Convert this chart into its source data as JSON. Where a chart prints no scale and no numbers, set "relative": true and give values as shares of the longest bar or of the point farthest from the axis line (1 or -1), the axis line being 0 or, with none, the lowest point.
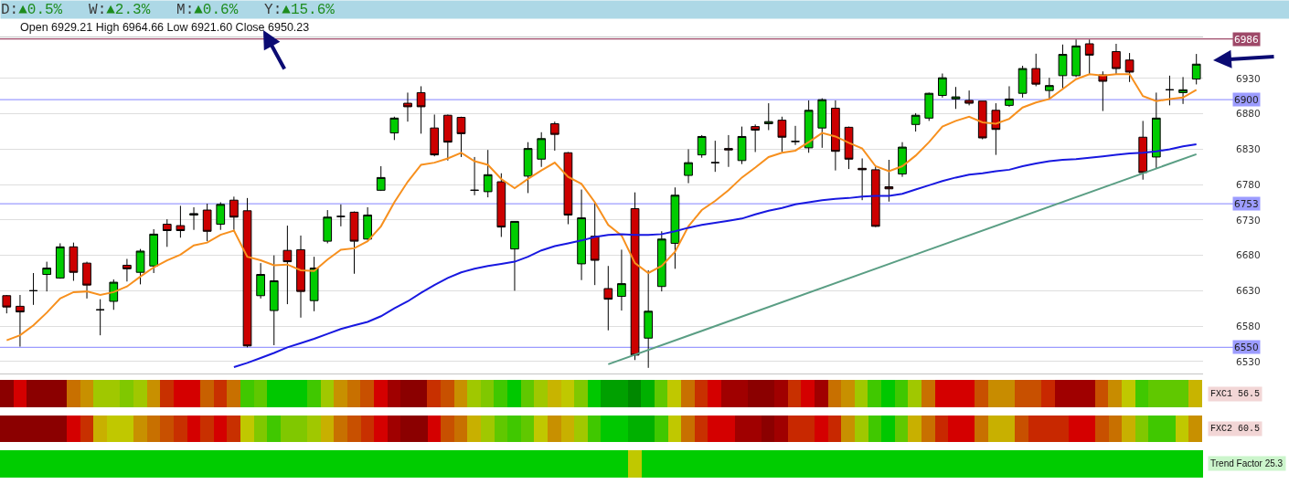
{
  "chart_data": [
    {
      "type": "candlestick",
      "title": "D:▲0.5%   W:▲2.3%   M:▲0.6%   Y:▲15.6%",
      "annotations": [
        "Open 6929.21 High 6964.66 Low 6921.60 Close 6950.23"
      ],
      "categories": [
        null,
        null,
        null,
        null,
        null,
        null,
        null,
        null,
        null,
        null,
        null,
        null,
        null,
        null,
        null,
        null,
        null,
        null,
        null,
        null,
        null,
        null,
        null,
        null,
        null,
        null,
        null,
        null,
        null,
        null,
        null,
        null,
        null,
        null,
        null,
        null,
        null,
        null,
        null,
        null,
        null,
        null,
        null,
        null,
        null,
        null,
        null,
        null,
        null,
        null,
        null,
        null,
        null,
        null,
        null,
        null,
        null,
        null,
        null,
        null,
        null,
        null,
        null,
        null,
        null,
        null,
        null,
        null,
        null,
        null,
        null,
        null,
        null,
        null,
        null,
        null,
        null,
        null,
        null,
        null,
        null,
        null,
        null,
        null,
        null,
        null,
        null,
        null,
        null,
        null
      ],
      "ohlc": [
        [
          6623,
          6624,
          6598,
          6607
        ],
        [
          6608,
          6624,
          6551,
          6600
        ],
        [
          6630,
          6655,
          6610,
          6630
        ],
        [
          6653,
          6671,
          6629,
          6662
        ],
        [
          6648,
          6697,
          6647,
          6692
        ],
        [
          6692,
          6698,
          6644,
          6656
        ],
        [
          6669,
          6671,
          6619,
          6638
        ],
        [
          6603,
          6618,
          6567,
          6603
        ],
        [
          6615,
          6646,
          6603,
          6642
        ],
        [
          6666,
          6675,
          6643,
          6661
        ],
        [
          6656,
          6689,
          6639,
          6686
        ],
        [
          6665,
          6717,
          6655,
          6710
        ],
        [
          6724,
          6731,
          6692,
          6715
        ],
        [
          6722,
          6750,
          6705,
          6715
        ],
        [
          6737,
          6748,
          6716,
          6739
        ],
        [
          6744,
          6753,
          6700,
          6714
        ],
        [
          6724,
          6755,
          6716,
          6752
        ],
        [
          6758,
          6763,
          6716,
          6734
        ],
        [
          6743,
          6761,
          6550,
          6552
        ],
        [
          6623,
          6669,
          6619,
          6653
        ],
        [
          6602,
          6680,
          6553,
          6644
        ],
        [
          6687,
          6722,
          6611,
          6671
        ],
        [
          6688,
          6708,
          6592,
          6629
        ],
        [
          6616,
          6678,
          6601,
          6662
        ],
        [
          6700,
          6744,
          6697,
          6734
        ],
        [
          6735,
          6752,
          6721,
          6735
        ],
        [
          6741,
          6742,
          6654,
          6700
        ],
        [
          6703,
          6748,
          6702,
          6737
        ],
        [
          6772,
          6806,
          6771,
          6790
        ],
        [
          6853,
          6876,
          6843,
          6874
        ],
        [
          6895,
          6910,
          6869,
          6890
        ],
        [
          6910,
          6919,
          6852,
          6890
        ],
        [
          6860,
          6879,
          6820,
          6822
        ],
        [
          6878,
          6879,
          6814,
          6840
        ],
        [
          6875,
          6876,
          6819,
          6852
        ],
        [
          6772,
          6819,
          6765,
          6772
        ],
        [
          6770,
          6829,
          6762,
          6794
        ],
        [
          6784,
          6796,
          6706,
          6720
        ],
        [
          6689,
          6728,
          6630,
          6728
        ],
        [
          6792,
          6840,
          6768,
          6831
        ],
        [
          6816,
          6854,
          6805,
          6845
        ],
        [
          6866,
          6869,
          6828,
          6851
        ],
        [
          6825,
          6826,
          6724,
          6737
        ],
        [
          6668,
          6773,
          6645,
          6733
        ],
        [
          6707,
          6754,
          6638,
          6673
        ],
        [
          6633,
          6665,
          6574,
          6618
        ],
        [
          6622,
          6688,
          6602,
          6640
        ],
        [
          6746,
          6769,
          6532,
          6539
        ],
        [
          6563,
          6659,
          6521,
          6601
        ],
        [
          6636,
          6714,
          6629,
          6703
        ],
        [
          6697,
          6776,
          6661,
          6765
        ],
        [
          6793,
          6830,
          6782,
          6811
        ],
        [
          6822,
          6850,
          6818,
          6848
        ],
        [
          6811,
          6842,
          6798,
          6811
        ],
        [
          6831,
          6850,
          6805,
          6829
        ],
        [
          6814,
          6862,
          6809,
          6848
        ],
        [
          6862,
          6865,
          6826,
          6857
        ],
        [
          6866,
          6895,
          6857,
          6869
        ],
        [
          6871,
          6876,
          6826,
          6847
        ],
        [
          6841,
          6863,
          6836,
          6841
        ],
        [
          6832,
          6899,
          6825,
          6885
        ],
        [
          6860,
          6902,
          6832,
          6900
        ],
        [
          6888,
          6899,
          6800,
          6827
        ],
        [
          6861,
          6862,
          6802,
          6816
        ],
        [
          6803,
          6817,
          6758,
          6801
        ],
        [
          6801,
          6806,
          6720,
          6721
        ],
        [
          6777,
          6815,
          6756,
          6774
        ],
        [
          6795,
          6840,
          6791,
          6833
        ],
        [
          6865,
          6881,
          6855,
          6878
        ],
        [
          6874,
          6910,
          6870,
          6909
        ],
        [
          6906,
          6937,
          6903,
          6931
        ],
        [
          6901,
          6918,
          6887,
          6904
        ],
        [
          6899,
          6913,
          6892,
          6895
        ],
        [
          6898,
          6898,
          6844,
          6846
        ],
        [
          6885,
          6895,
          6822,
          6858
        ],
        [
          6892,
          6919,
          6890,
          6901
        ],
        [
          6909,
          6948,
          6903,
          6944
        ],
        [
          6944,
          6965,
          6919,
          6922
        ],
        [
          6913,
          6931,
          6901,
          6920
        ],
        [
          6934,
          6978,
          6916,
          6964
        ],
        [
          6934,
          6985,
          6932,
          6976
        ],
        [
          6979,
          6985,
          6936,
          6963
        ],
        [
          6935,
          6940,
          6884,
          6926
        ],
        [
          6968,
          6979,
          6936,
          6944
        ],
        [
          6956,
          6966,
          6925,
          6939
        ],
        [
          6847,
          6870,
          6787,
          6797
        ],
        [
          6819,
          6910,
          6803,
          6874
        ],
        [
          6914,
          6934,
          6892,
          6914
        ],
        [
          6910,
          6932,
          6894,
          6914
        ],
        [
          6929.21,
          6964.66,
          6921.6,
          6950.23
        ]
      ],
      "series": [
        {
          "type": "line",
          "color": "#f7901e",
          "values": [
            6560,
            6567,
            6581,
            6599,
            6619,
            6628,
            6629,
            6624,
            6628,
            6636,
            6650,
            6663,
            6673,
            6681,
            6694,
            6698,
            6709,
            6715,
            6678,
            6673,
            6666,
            6667,
            6659,
            6658,
            6674,
            6688,
            6690,
            6700,
            6721,
            6755,
            6784,
            6808,
            6811,
            6817,
            6825,
            6813,
            6808,
            6788,
            6775,
            6788,
            6800,
            6811,
            6791,
            6781,
            6755,
            6723,
            6708,
            6669,
            6655,
            6665,
            6685,
            6721,
            6744,
            6757,
            6772,
            6790,
            6804,
            6819,
            6825,
            6828,
            6840,
            6853,
            6848,
            6839,
            6831,
            6806,
            6799,
            6806,
            6821,
            6840,
            6862,
            6870,
            6876,
            6868,
            6866,
            6873,
            6889,
            6896,
            6901,
            6915,
            6929,
            6936,
            6934,
            6936,
            6936,
            6905,
            6898,
            6901,
            6903,
            6914
          ]
        },
        {
          "type": "line",
          "color": "#1818e0",
          "values": [
            null,
            null,
            null,
            null,
            null,
            null,
            null,
            null,
            null,
            null,
            null,
            null,
            null,
            null,
            null,
            null,
            null,
            6522,
            6528,
            6535,
            6542,
            6550,
            6556,
            6562,
            6569,
            6576,
            6581,
            6586,
            6594,
            6605,
            6615,
            6627,
            6638,
            6648,
            6656,
            6661,
            6665,
            6668,
            6671,
            6678,
            6687,
            6693,
            6697,
            6701,
            6706,
            6709,
            6710,
            6709,
            6709,
            6710,
            6714,
            6719,
            6723,
            6726,
            6729,
            6732,
            6738,
            6743,
            6747,
            6752,
            6755,
            6758,
            6760,
            6761,
            6763,
            6764,
            6764,
            6767,
            6773,
            6779,
            6785,
            6790,
            6794,
            6796,
            6799,
            6801,
            6806,
            6810,
            6813,
            6815,
            6816,
            6818,
            6820,
            6822,
            6824,
            6825,
            6827,
            6830,
            6834,
            6837
          ]
        },
        {
          "type": "line",
          "color": "#5a9e84",
          "values": [
            null,
            null,
            null,
            null,
            null,
            null,
            null,
            null,
            null,
            null,
            null,
            null,
            null,
            null,
            null,
            null,
            null,
            null,
            null,
            null,
            null,
            null,
            null,
            null,
            null,
            null,
            null,
            null,
            null,
            null,
            null,
            null,
            null,
            null,
            null,
            null,
            null,
            null,
            null,
            null,
            null,
            null,
            null,
            null,
            null,
            6526,
            null,
            null,
            null,
            null,
            null,
            null,
            null,
            null,
            null,
            null,
            null,
            null,
            null,
            null,
            null,
            null,
            null,
            null,
            null,
            null,
            null,
            null,
            null,
            null,
            null,
            null,
            null,
            null,
            null,
            null,
            null,
            null,
            null,
            null,
            null,
            null,
            null,
            null,
            null,
            null,
            null,
            null,
            null,
            6823
          ]
        }
      ],
      "ylim": [
        6513,
        6988
      ],
      "yticks": [
        6530,
        6580,
        6630,
        6680,
        6730,
        6780,
        6830,
        6880,
        6930
      ],
      "ref_lines": [
        {
          "axis": "y",
          "value": 6986,
          "label": "6986",
          "color": "#9e4868"
        },
        {
          "axis": "y",
          "value": 6900,
          "label": "6900",
          "color": "#9c9cff"
        },
        {
          "axis": "y",
          "value": 6753,
          "label": "6753",
          "color": "#9c9cff"
        },
        {
          "axis": "y",
          "value": 6550,
          "label": "6550",
          "color": "#9c9cff"
        }
      ],
      "grid": "y",
      "tick_labels": "y"
    },
    {
      "type": "bar",
      "orientation": "horizontal",
      "stacked": true,
      "relative": true,
      "categories": [
        "FXC1 56.5",
        "FXC2 60.5",
        "Trend Factor 25.3"
      ],
      "series": [
        {
          "colors": [
            "#8b0000",
            "#8b0000",
            "#00cc00"
          ],
          "values": [
            0.0111,
            0.0556,
            0.5222
          ]
        },
        {
          "colors": [
            "#d40000",
            "#d40000",
            "#c0c800"
          ],
          "values": [
            0.0111,
            0.0111,
            0.0111
          ]
        },
        {
          "colors": [
            "#8b0000",
            "#c83000",
            "#00cc00"
          ],
          "values": [
            0.0333,
            0.0111,
            0.4667
          ]
        },
        {
          "colors": [
            "#c87000",
            "#c8b000",
            null
          ],
          "values": [
            0.0111,
            0.0111,
            null
          ]
        },
        {
          "colors": [
            "#c89000",
            "#c0c800",
            null
          ],
          "values": [
            0.0111,
            0.0222,
            null
          ]
        },
        {
          "colors": [
            "#a0c800",
            "#c89000",
            null
          ],
          "values": [
            0.0222,
            0.0111,
            null
          ]
        },
        {
          "colors": [
            "#80c800",
            "#c87000",
            null
          ],
          "values": [
            0.0111,
            0.0111,
            null
          ]
        },
        {
          "colors": [
            "#a0c800",
            "#c85000",
            null
          ],
          "values": [
            0.0111,
            0.0111,
            null
          ]
        },
        {
          "colors": [
            "#c89000",
            "#c83000",
            null
          ],
          "values": [
            0.0111,
            0.0111,
            null
          ]
        },
        {
          "colors": [
            "#c83000",
            "#d40000",
            null
          ],
          "values": [
            0.0111,
            0.0111,
            null
          ]
        },
        {
          "colors": [
            "#d40000",
            "#c83000",
            null
          ],
          "values": [
            0.0222,
            0.0111,
            null
          ]
        },
        {
          "colors": [
            "#c86000",
            "#d40000",
            null
          ],
          "values": [
            0.0111,
            0.0111,
            null
          ]
        },
        {
          "colors": [
            "#c83000",
            "#c83000",
            null
          ],
          "values": [
            0.0111,
            0.0111,
            null
          ]
        },
        {
          "colors": [
            "#c87000",
            "#c0c800",
            null
          ],
          "values": [
            0.0111,
            0.0111,
            null
          ]
        },
        {
          "colors": [
            "#40c800",
            "#80c800",
            null
          ],
          "values": [
            0.0111,
            0.0111,
            null
          ]
        },
        {
          "colors": [
            "#60c800",
            "#40c800",
            null
          ],
          "values": [
            0.0111,
            0.0111,
            null
          ]
        },
        {
          "colors": [
            "#00c800",
            "#80c800",
            null
          ],
          "values": [
            0.0333,
            0.0222,
            null
          ]
        },
        {
          "colors": [
            "#40c800",
            "#a0c800",
            null
          ],
          "values": [
            0.0111,
            0.0111,
            null
          ]
        },
        {
          "colors": [
            "#a0c800",
            "#c8b000",
            null
          ],
          "values": [
            0.0111,
            0.0111,
            null
          ]
        },
        {
          "colors": [
            "#c89000",
            "#c87000",
            null
          ],
          "values": [
            0.0111,
            0.0111,
            null
          ]
        },
        {
          "colors": [
            "#c87000",
            "#c85000",
            null
          ],
          "values": [
            0.0111,
            0.0111,
            null
          ]
        },
        {
          "colors": [
            "#c85000",
            "#c83000",
            null
          ],
          "values": [
            0.0111,
            0.0111,
            null
          ]
        },
        {
          "colors": [
            "#d40000",
            "#d40000",
            null
          ],
          "values": [
            0.0111,
            0.0111,
            null
          ]
        },
        {
          "colors": [
            "#a00000",
            "#a00000",
            null
          ],
          "values": [
            0.0111,
            0.0111,
            null
          ]
        },
        {
          "colors": [
            "#8b0000",
            "#8b0000",
            null
          ],
          "values": [
            0.0222,
            0.0222,
            null
          ]
        },
        {
          "colors": [
            "#c83000",
            "#d40000",
            null
          ],
          "values": [
            0.0111,
            0.0111,
            null
          ]
        },
        {
          "colors": [
            "#c85000",
            "#c85000",
            null
          ],
          "values": [
            0.0111,
            0.0111,
            null
          ]
        },
        {
          "colors": [
            "#c89000",
            "#c87000",
            null
          ],
          "values": [
            0.0111,
            0.0111,
            null
          ]
        },
        {
          "colors": [
            "#a0c800",
            "#c8b000",
            null
          ],
          "values": [
            0.0111,
            0.0111,
            null
          ]
        },
        {
          "colors": [
            "#80c800",
            "#a0c800",
            null
          ],
          "values": [
            0.0111,
            0.0111,
            null
          ]
        },
        {
          "colors": [
            "#40c800",
            "#60c800",
            null
          ],
          "values": [
            0.0111,
            0.0111,
            null
          ]
        },
        {
          "colors": [
            "#00c800",
            "#40c800",
            null
          ],
          "values": [
            0.0111,
            0.0111,
            null
          ]
        },
        {
          "colors": [
            "#60c800",
            "#60c800",
            null
          ],
          "values": [
            0.0111,
            0.0111,
            null
          ]
        },
        {
          "colors": [
            "#a0c800",
            "#c0c800",
            null
          ],
          "values": [
            0.0111,
            0.0111,
            null
          ]
        },
        {
          "colors": [
            "#c8b400",
            "#c89000",
            null
          ],
          "values": [
            0.0111,
            0.0111,
            null
          ]
        },
        {
          "colors": [
            "#c0c800",
            "#c8b000",
            null
          ],
          "values": [
            0.0111,
            0.0111,
            null
          ]
        },
        {
          "colors": [
            "#80c800",
            "#a0c800",
            null
          ],
          "values": [
            0.0111,
            0.0111,
            null
          ]
        },
        {
          "colors": [
            "#00c800",
            "#40c800",
            null
          ],
          "values": [
            0.0111,
            0.0111,
            null
          ]
        },
        {
          "colors": [
            "#00a000",
            "#00c800",
            null
          ],
          "values": [
            0.0222,
            0.0222,
            null
          ]
        },
        {
          "colors": [
            "#008800",
            "#00b000",
            null
          ],
          "values": [
            0.0111,
            0.0222,
            null
          ]
        },
        {
          "colors": [
            "#00b000",
            "#40c800",
            null
          ],
          "values": [
            0.0111,
            0.0111,
            null
          ]
        },
        {
          "colors": [
            "#60c800",
            "#c0c800",
            null
          ],
          "values": [
            0.0111,
            0.0111,
            null
          ]
        },
        {
          "colors": [
            "#c0c800",
            "#c87000",
            null
          ],
          "values": [
            0.0111,
            0.0111,
            null
          ]
        },
        {
          "colors": [
            "#c87000",
            "#c83000",
            null
          ],
          "values": [
            0.0111,
            0.0111,
            null
          ]
        },
        {
          "colors": [
            "#c83000",
            "#d40000",
            null
          ],
          "values": [
            0.0111,
            0.0222,
            null
          ]
        },
        {
          "colors": [
            "#d40000",
            "#a00000",
            null
          ],
          "values": [
            0.0111,
            0.0222,
            null
          ]
        },
        {
          "colors": [
            "#a00000",
            "#8b0000",
            null
          ],
          "values": [
            0.0222,
            0.0111,
            null
          ]
        },
        {
          "colors": [
            "#8b0000",
            "#a00000",
            null
          ],
          "values": [
            0.0222,
            0.0111,
            null
          ]
        },
        {
          "colors": [
            "#a00000",
            "#c82800",
            null
          ],
          "values": [
            0.0111,
            0.0222,
            null
          ]
        },
        {
          "colors": [
            "#c83000",
            "#d40000",
            null
          ],
          "values": [
            0.0111,
            0.0111,
            null
          ]
        },
        {
          "colors": [
            "#d40000",
            "#c82800",
            null
          ],
          "values": [
            0.0111,
            0.0111,
            null
          ]
        },
        {
          "colors": [
            "#a00000",
            "#c89000",
            null
          ],
          "values": [
            0.0111,
            0.0111,
            null
          ]
        },
        {
          "colors": [
            "#c87000",
            "#a0c800",
            null
          ],
          "values": [
            0.0111,
            0.0111,
            null
          ]
        },
        {
          "colors": [
            "#c89000",
            "#40c800",
            null
          ],
          "values": [
            0.0111,
            0.0111,
            null
          ]
        },
        {
          "colors": [
            "#a0c800",
            "#00c800",
            null
          ],
          "values": [
            0.0111,
            0.0111,
            null
          ]
        },
        {
          "colors": [
            "#40c800",
            "#60c800",
            null
          ],
          "values": [
            0.0111,
            0.0111,
            null
          ]
        },
        {
          "colors": [
            "#00c800",
            "#c8b000",
            null
          ],
          "values": [
            0.0111,
            0.0111,
            null
          ]
        },
        {
          "colors": [
            "#40c800",
            "#c87000",
            null
          ],
          "values": [
            0.0111,
            0.0111,
            null
          ]
        },
        {
          "colors": [
            "#a0c800",
            "#c82800",
            null
          ],
          "values": [
            0.0111,
            0.0111,
            null
          ]
        },
        {
          "colors": [
            "#c87000",
            "#d40000",
            null
          ],
          "values": [
            0.0111,
            0.0222,
            null
          ]
        },
        {
          "colors": [
            "#d40000",
            "#c87000",
            null
          ],
          "values": [
            0.0333,
            0.0111,
            null
          ]
        },
        {
          "colors": [
            "#c85000",
            "#c8b000",
            null
          ],
          "values": [
            0.0111,
            0.0222,
            null
          ]
        },
        {
          "colors": [
            "#c88c00",
            "#c85000",
            null
          ],
          "values": [
            0.0222,
            0.0111,
            null
          ]
        },
        {
          "colors": [
            "#c85000",
            "#c82800",
            null
          ],
          "values": [
            0.0222,
            0.0333,
            null
          ]
        },
        {
          "colors": [
            "#c82800",
            "#d40000",
            null
          ],
          "values": [
            0.0111,
            0.0222,
            null
          ]
        },
        {
          "colors": [
            "#a00000",
            "#c85000",
            null
          ],
          "values": [
            0.0333,
            0.0111,
            null
          ]
        },
        {
          "colors": [
            "#c85000",
            "#c87000",
            null
          ],
          "values": [
            0.0111,
            0.0111,
            null
          ]
        },
        {
          "colors": [
            "#c88c00",
            "#c8b000",
            null
          ],
          "values": [
            0.0111,
            0.0111,
            null
          ]
        },
        {
          "colors": [
            "#c0c800",
            "#80c800",
            null
          ],
          "values": [
            0.0111,
            0.0111,
            null
          ]
        },
        {
          "colors": [
            "#40c800",
            "#40c800",
            null
          ],
          "values": [
            0.0111,
            0.0222,
            null
          ]
        },
        {
          "colors": [
            "#60c800",
            "#c0c800",
            null
          ],
          "values": [
            0.0333,
            0.0111,
            null
          ]
        },
        {
          "colors": [
            "#c8b400",
            "#c89000",
            null
          ],
          "values": [
            0.0111,
            0.0111,
            null
          ]
        }
      ]
    }
  ]
}
